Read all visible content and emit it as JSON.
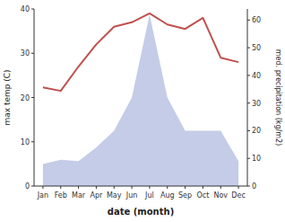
{
  "chart_data": {
    "type": "line",
    "categories": [
      "Jan",
      "Feb",
      "Mar",
      "Apr",
      "May",
      "Jun",
      "Jul",
      "Aug",
      "Sep",
      "Oct",
      "Nov",
      "Dec"
    ],
    "series": [
      {
        "type": "line",
        "color": "#c0504d",
        "values": [
          22.3,
          21.5,
          27.0,
          32.0,
          36.0,
          37.0,
          39.0,
          36.5,
          35.5,
          38.0,
          29.0,
          28.0
        ]
      },
      {
        "type": "area",
        "color": "#c5cce8",
        "axis": "y2",
        "values": [
          8.0,
          9.5,
          9.0,
          14.0,
          20.0,
          32.0,
          62.0,
          32.0,
          20.0,
          20.0,
          20.0,
          9.0
        ]
      }
    ],
    "xlabel": "date (month)",
    "ylabel": "max temp (C)",
    "y2label": "med. precipitation (kg/m2)",
    "ylim": [
      0,
      40
    ],
    "yticks": [
      0,
      10,
      20,
      30,
      40
    ],
    "y2lim": [
      0,
      64
    ],
    "y2ticks": [
      0,
      10,
      20,
      30,
      40,
      50,
      60
    ],
    "grid": false
  }
}
